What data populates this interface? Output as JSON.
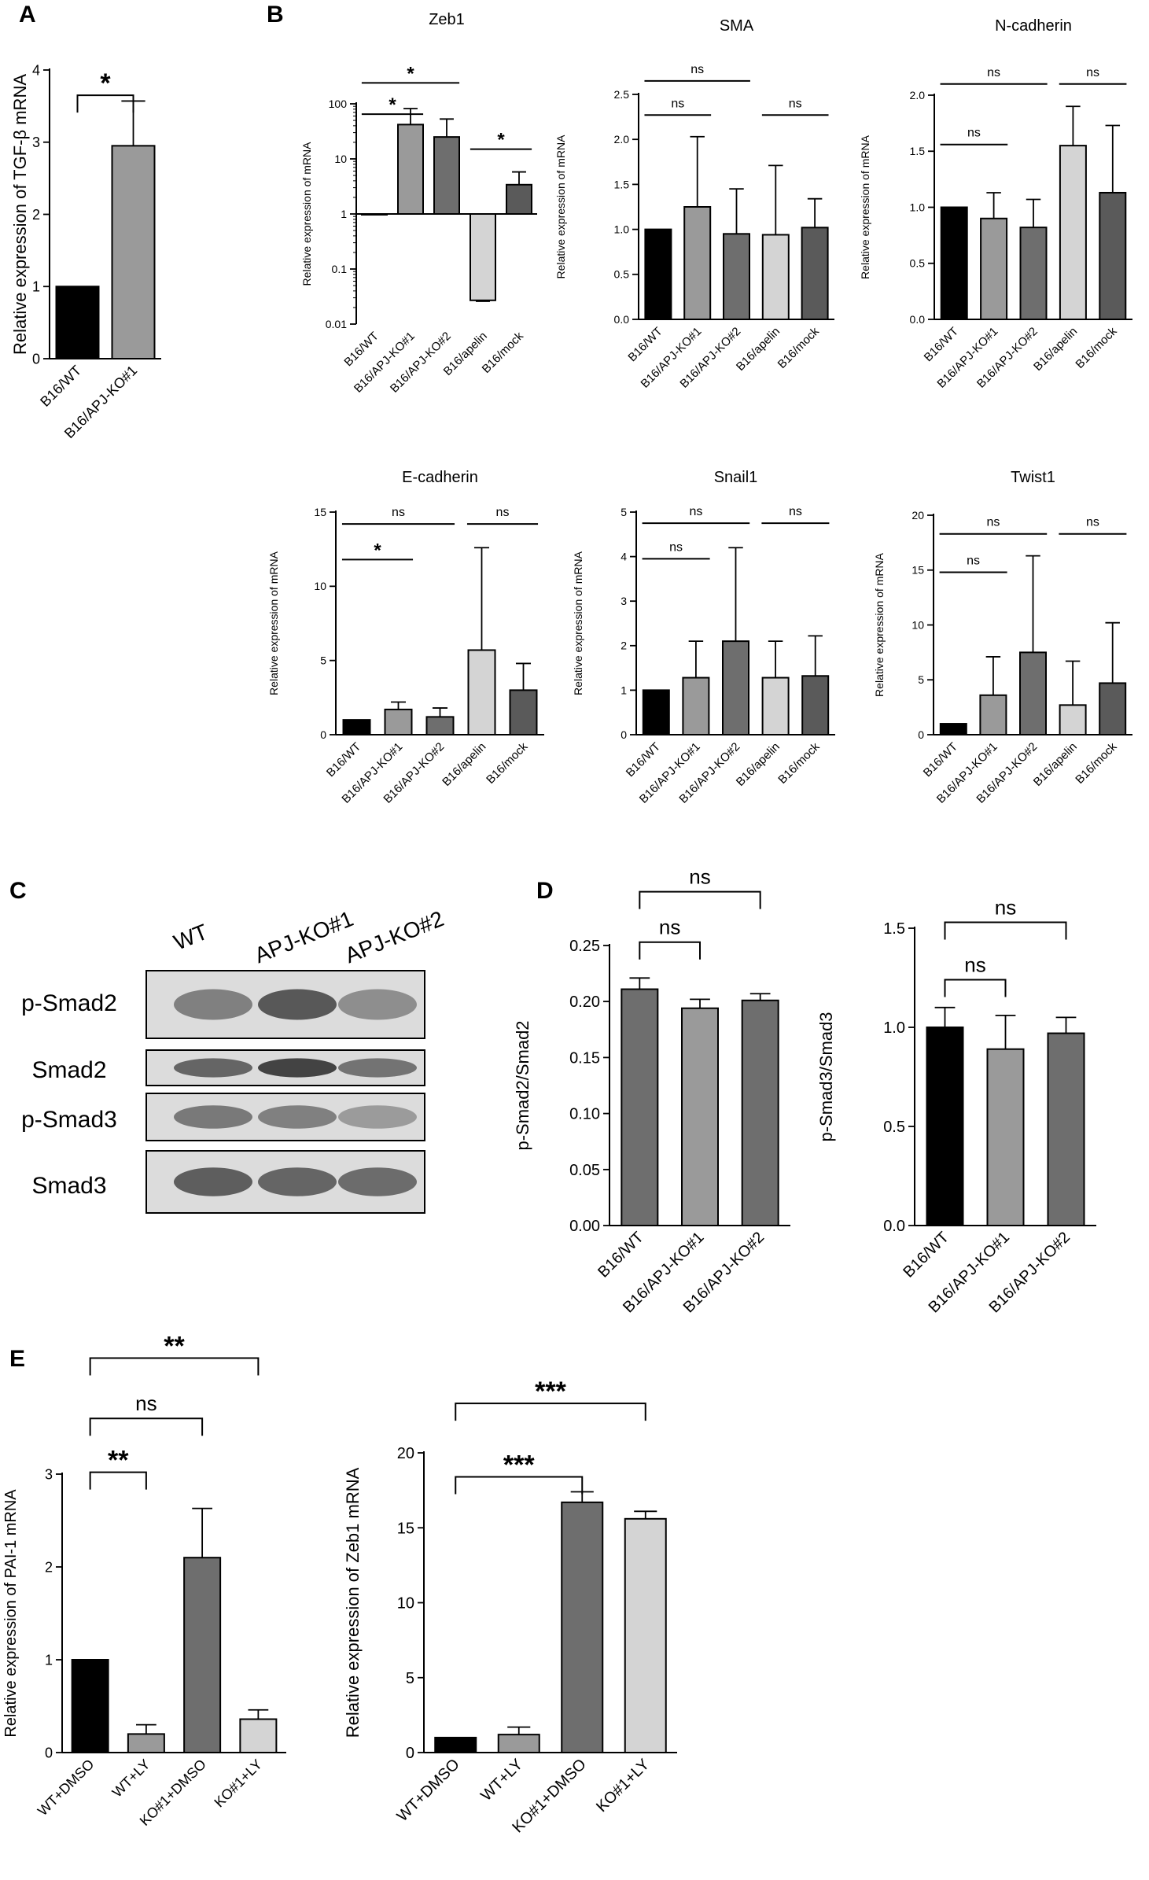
{
  "panel_letters": [
    "A",
    "B",
    "C",
    "D",
    "E"
  ],
  "colors": {
    "black": "#000000",
    "mid_gray": "#9a9a9a",
    "dark_gray": "#6e6e6e",
    "light_gray": "#d4d4d4",
    "darker_gray": "#5a5a5a"
  },
  "blot": {
    "lanes": [
      "WT",
      "APJ-KO#1",
      "APJ-KO#2"
    ],
    "rows": [
      "p-Smad2",
      "Smad2",
      "p-Smad3",
      "Smad3"
    ],
    "intensity": [
      [
        0.55,
        0.85,
        0.45
      ],
      [
        0.75,
        1.0,
        0.65
      ],
      [
        0.6,
        0.55,
        0.35
      ],
      [
        0.8,
        0.75,
        0.7
      ]
    ]
  },
  "chart_data": [
    {
      "id": "A",
      "type": "bar",
      "title": "",
      "ylabel": "Relative expression of TGF-β mRNA",
      "categories": [
        "B16/WT",
        "B16/APJ-KO#1"
      ],
      "values": [
        1,
        2.95
      ],
      "errors": [
        0,
        0.62
      ],
      "ylim": [
        0,
        4
      ],
      "yticks": [
        "0",
        "1",
        "2",
        "3",
        "4"
      ],
      "bar_colors": [
        "#000000",
        "#9a9a9a"
      ],
      "comparisons": [
        {
          "from": 0,
          "to": 1,
          "label": "*",
          "y": 3.65
        }
      ]
    },
    {
      "id": "B1",
      "type": "bar",
      "scale": "log",
      "title": "Zeb1",
      "ylabel": "Relative expression of mRNA",
      "categories": [
        "B16/WT",
        "B16/APJ-KO#1",
        "B16/APJ-KO#2",
        "B16/apelin",
        "B16/mock"
      ],
      "values": [
        1,
        42,
        25,
        0.027,
        3.4
      ],
      "errors": [
        0,
        40,
        28,
        0.001,
        2.4
      ],
      "ylim": [
        0.01,
        100
      ],
      "yticks": [
        "0.01",
        "0.1",
        "1",
        "10",
        "100"
      ],
      "bar_colors": [
        "#000000",
        "#9a9a9a",
        "#6e6e6e",
        "#d4d4d4",
        "#5a5a5a"
      ],
      "comparisons": [
        {
          "from": 0,
          "to": 2,
          "label": "*",
          "y": 240
        },
        {
          "from": 0,
          "to": 1,
          "label": "*",
          "y": 65
        },
        {
          "from": 3,
          "to": 4,
          "label": "*",
          "y": 15
        }
      ]
    },
    {
      "id": "B2",
      "type": "bar",
      "title": "SMA",
      "ylabel": "Relative expression of mRNA",
      "categories": [
        "B16/WT",
        "B16/APJ-KO#1",
        "B16/APJ-KO#2",
        "B16/apelin",
        "B16/mock"
      ],
      "values": [
        1,
        1.25,
        0.95,
        0.94,
        1.02
      ],
      "errors": [
        0,
        0.78,
        0.5,
        0.77,
        0.32
      ],
      "ylim": [
        0,
        2.5
      ],
      "yticks": [
        "0.0",
        "0.5",
        "1.0",
        "1.5",
        "2.0",
        "2.5"
      ],
      "bar_colors": [
        "#000000",
        "#9a9a9a",
        "#6e6e6e",
        "#d4d4d4",
        "#5a5a5a"
      ],
      "comparisons": [
        {
          "from": 0,
          "to": 2,
          "label": "ns",
          "y": 2.65
        },
        {
          "from": 0,
          "to": 1,
          "label": "ns",
          "y": 2.27
        },
        {
          "from": 3,
          "to": 4,
          "label": "ns",
          "y": 2.27
        }
      ]
    },
    {
      "id": "B3",
      "type": "bar",
      "title": "N-cadherin",
      "ylabel": "Relative expression of mRNA",
      "categories": [
        "B16/WT",
        "B16/APJ-KO#1",
        "B16/APJ-KO#2",
        "B16/apelin",
        "B16/mock"
      ],
      "values": [
        1,
        0.9,
        0.82,
        1.55,
        1.13
      ],
      "errors": [
        0,
        0.23,
        0.25,
        0.35,
        0.6
      ],
      "ylim": [
        0,
        2.0
      ],
      "yticks": [
        "0.0",
        "0.5",
        "1.0",
        "1.5",
        "2.0"
      ],
      "bar_colors": [
        "#000000",
        "#9a9a9a",
        "#6e6e6e",
        "#d4d4d4",
        "#5a5a5a"
      ],
      "comparisons": [
        {
          "from": 0,
          "to": 2,
          "label": "ns",
          "y": 2.1
        },
        {
          "from": 0,
          "to": 1,
          "label": "ns",
          "y": 1.56
        },
        {
          "from": 3,
          "to": 4,
          "label": "ns",
          "y": 2.1
        }
      ]
    },
    {
      "id": "B4",
      "type": "bar",
      "title": "E-cadherin",
      "ylabel": "Relative expression of mRNA",
      "categories": [
        "B16/WT",
        "B16/APJ-KO#1",
        "B16/APJ-KO#2",
        "B16/apelin",
        "B16/mock"
      ],
      "values": [
        1,
        1.7,
        1.2,
        5.7,
        3.0
      ],
      "errors": [
        0,
        0.5,
        0.6,
        6.9,
        1.8
      ],
      "ylim": [
        0,
        15
      ],
      "yticks": [
        "0",
        "5",
        "10",
        "15"
      ],
      "bar_colors": [
        "#000000",
        "#9a9a9a",
        "#6e6e6e",
        "#d4d4d4",
        "#5a5a5a"
      ],
      "comparisons": [
        {
          "from": 0,
          "to": 2,
          "label": "ns",
          "y": 14.2
        },
        {
          "from": 0,
          "to": 1,
          "label": "*",
          "y": 11.8
        },
        {
          "from": 3,
          "to": 4,
          "label": "ns",
          "y": 14.2
        }
      ]
    },
    {
      "id": "B5",
      "type": "bar",
      "title": "Snail1",
      "ylabel": "Relative expression of mRNA",
      "categories": [
        "B16/WT",
        "B16/APJ-KO#1",
        "B16/APJ-KO#2",
        "B16/apelin",
        "B16/mock"
      ],
      "values": [
        1,
        1.28,
        2.1,
        1.28,
        1.32
      ],
      "errors": [
        0,
        0.82,
        2.1,
        0.82,
        0.9
      ],
      "ylim": [
        0,
        5
      ],
      "yticks": [
        "0",
        "1",
        "2",
        "3",
        "4",
        "5"
      ],
      "bar_colors": [
        "#000000",
        "#9a9a9a",
        "#6e6e6e",
        "#d4d4d4",
        "#5a5a5a"
      ],
      "comparisons": [
        {
          "from": 0,
          "to": 2,
          "label": "ns",
          "y": 4.75
        },
        {
          "from": 0,
          "to": 1,
          "label": "ns",
          "y": 3.95
        },
        {
          "from": 3,
          "to": 4,
          "label": "ns",
          "y": 4.75
        }
      ]
    },
    {
      "id": "B6",
      "type": "bar",
      "title": "Twist1",
      "ylabel": "Relative expression of mRNA",
      "categories": [
        "B16/WT",
        "B16/APJ-KO#1",
        "B16/APJ-KO#2",
        "B16/apelin",
        "B16/mock"
      ],
      "values": [
        1,
        3.6,
        7.5,
        2.7,
        4.7
      ],
      "errors": [
        0,
        3.5,
        8.8,
        4.0,
        5.5
      ],
      "ylim": [
        0,
        20
      ],
      "yticks": [
        "0",
        "5",
        "10",
        "15",
        "20"
      ],
      "bar_colors": [
        "#000000",
        "#9a9a9a",
        "#6e6e6e",
        "#d4d4d4",
        "#5a5a5a"
      ],
      "comparisons": [
        {
          "from": 0,
          "to": 2,
          "label": "ns",
          "y": 18.3
        },
        {
          "from": 0,
          "to": 1,
          "label": "ns",
          "y": 14.8
        },
        {
          "from": 3,
          "to": 4,
          "label": "ns",
          "y": 18.3
        }
      ]
    },
    {
      "id": "D1",
      "type": "bar",
      "title": "",
      "ylabel": "p-Smad2/Smad2",
      "categories": [
        "B16/WT",
        "B16/APJ-KO#1",
        "B16/APJ-KO#2"
      ],
      "values": [
        0.211,
        0.194,
        0.201
      ],
      "errors": [
        0.01,
        0.008,
        0.006
      ],
      "ylim": [
        0,
        0.25
      ],
      "yticks": [
        "0.00",
        "0.05",
        "0.10",
        "0.15",
        "0.20",
        "0.25"
      ],
      "bar_colors": [
        "#6e6e6e",
        "#9a9a9a",
        "#6e6e6e"
      ],
      "comparisons": [
        {
          "from": 0,
          "to": 2,
          "label": "ns",
          "y": 0.298
        },
        {
          "from": 0,
          "to": 1,
          "label": "ns",
          "y": 0.253
        }
      ]
    },
    {
      "id": "D2",
      "type": "bar",
      "title": "",
      "ylabel": "p-Smad3/Smad3",
      "categories": [
        "B16/WT",
        "B16/APJ-KO#1",
        "B16/APJ-KO#2"
      ],
      "values": [
        1.0,
        0.89,
        0.97
      ],
      "errors": [
        0.1,
        0.17,
        0.08
      ],
      "ylim": [
        0,
        1.5
      ],
      "yticks": [
        "0.0",
        "0.5",
        "1.0",
        "1.5"
      ],
      "bar_colors": [
        "#000000",
        "#9a9a9a",
        "#6e6e6e"
      ],
      "comparisons": [
        {
          "from": 0,
          "to": 2,
          "label": "ns",
          "y": 1.53
        },
        {
          "from": 0,
          "to": 1,
          "label": "ns",
          "y": 1.24
        }
      ]
    },
    {
      "id": "E1",
      "type": "bar",
      "title": "",
      "ylabel": "Relative expression of PAI-1 mRNA",
      "categories": [
        "WT+DMSO",
        "WT+LY",
        "KO#1+DMSO",
        "KO#1+LY"
      ],
      "values": [
        1,
        0.2,
        2.1,
        0.36
      ],
      "errors": [
        0,
        0.1,
        0.53,
        0.1
      ],
      "ylim": [
        0,
        3
      ],
      "yticks": [
        "0",
        "1",
        "2",
        "3"
      ],
      "bar_colors": [
        "#000000",
        "#9a9a9a",
        "#6e6e6e",
        "#d4d4d4"
      ],
      "comparisons": [
        {
          "from": 0,
          "to": 3,
          "label": "**",
          "y": 4.25
        },
        {
          "from": 0,
          "to": 2,
          "label": "ns",
          "y": 3.6
        },
        {
          "from": 0,
          "to": 1,
          "label": "**",
          "y": 3.02
        }
      ]
    },
    {
      "id": "E2",
      "type": "bar",
      "title": "",
      "ylabel": "Relative expression of Zeb1 mRNA",
      "categories": [
        "WT+DMSO",
        "WT+LY",
        "KO#1+DMSO",
        "KO#1+LY"
      ],
      "values": [
        1,
        1.2,
        16.7,
        15.6
      ],
      "errors": [
        0,
        0.5,
        0.7,
        0.5
      ],
      "ylim": [
        0,
        20
      ],
      "yticks": [
        "0",
        "5",
        "10",
        "15",
        "20"
      ],
      "bar_colors": [
        "#000000",
        "#9a9a9a",
        "#6e6e6e",
        "#d4d4d4"
      ],
      "comparisons": [
        {
          "from": 0,
          "to": 3,
          "label": "***",
          "y": 23.3
        },
        {
          "from": 0,
          "to": 2,
          "label": "***",
          "y": 18.4
        }
      ]
    }
  ]
}
